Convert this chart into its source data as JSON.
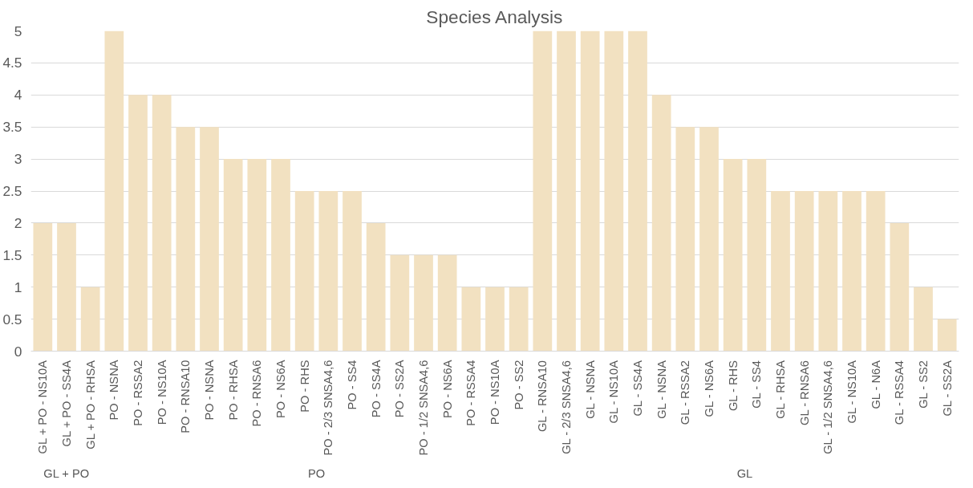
{
  "chart_data": {
    "type": "bar",
    "title": "Species Analysis",
    "categories": [
      "GL + PO - NS10A",
      "GL + PO - SS4A",
      "GL + PO - RHSA",
      "PO - NSNA",
      "PO - RSSA2",
      "PO - NS10A",
      "PO - RNSA10",
      "PO - NSNA",
      "PO - RHSA",
      "PO - RNSA6",
      "PO - NS6A",
      "PO - RHS",
      "PO - 2/3 SNSA4,6",
      "PO - SS4",
      "PO - SS4A",
      "PO - SS2A",
      "PO - 1/2 SNSA4,6",
      "PO - NS6A",
      "PO - RSSA4",
      "PO - NS10A",
      "PO - SS2",
      "GL - RNSA10",
      "GL - 2/3 SNSA4,6",
      "GL - NSNA",
      "GL - NS10A",
      "GL - SS4A",
      "GL - NSNA",
      "GL - RSSA2",
      "GL - NS6A",
      "GL - RHS",
      "GL - SS4",
      "GL - RHSA",
      "GL - RNSA6",
      "GL - 1/2 SNSA4,6",
      "GL - NS10A",
      "GL - N6A",
      "GL - RSSA4",
      "GL - SS2",
      "GL - SS2A"
    ],
    "values": [
      2,
      2,
      1,
      5,
      4,
      4,
      3.5,
      3.5,
      3,
      3,
      3,
      2.5,
      2.5,
      2.5,
      2,
      1.5,
      1.5,
      1.5,
      1,
      1,
      1,
      5,
      5,
      5,
      5,
      5,
      4,
      3.5,
      3.5,
      3,
      3,
      2.5,
      2.5,
      2.5,
      2.5,
      2.5,
      2,
      1,
      0.5
    ],
    "color": "#f2e1c1",
    "ylim": [
      0,
      5
    ],
    "yticks": [
      0,
      0.5,
      1,
      1.5,
      2,
      2.5,
      3,
      3.5,
      4,
      4.5,
      5
    ],
    "grid": "y",
    "annotations": [
      "GL + PO",
      "PO",
      "GL"
    ]
  }
}
